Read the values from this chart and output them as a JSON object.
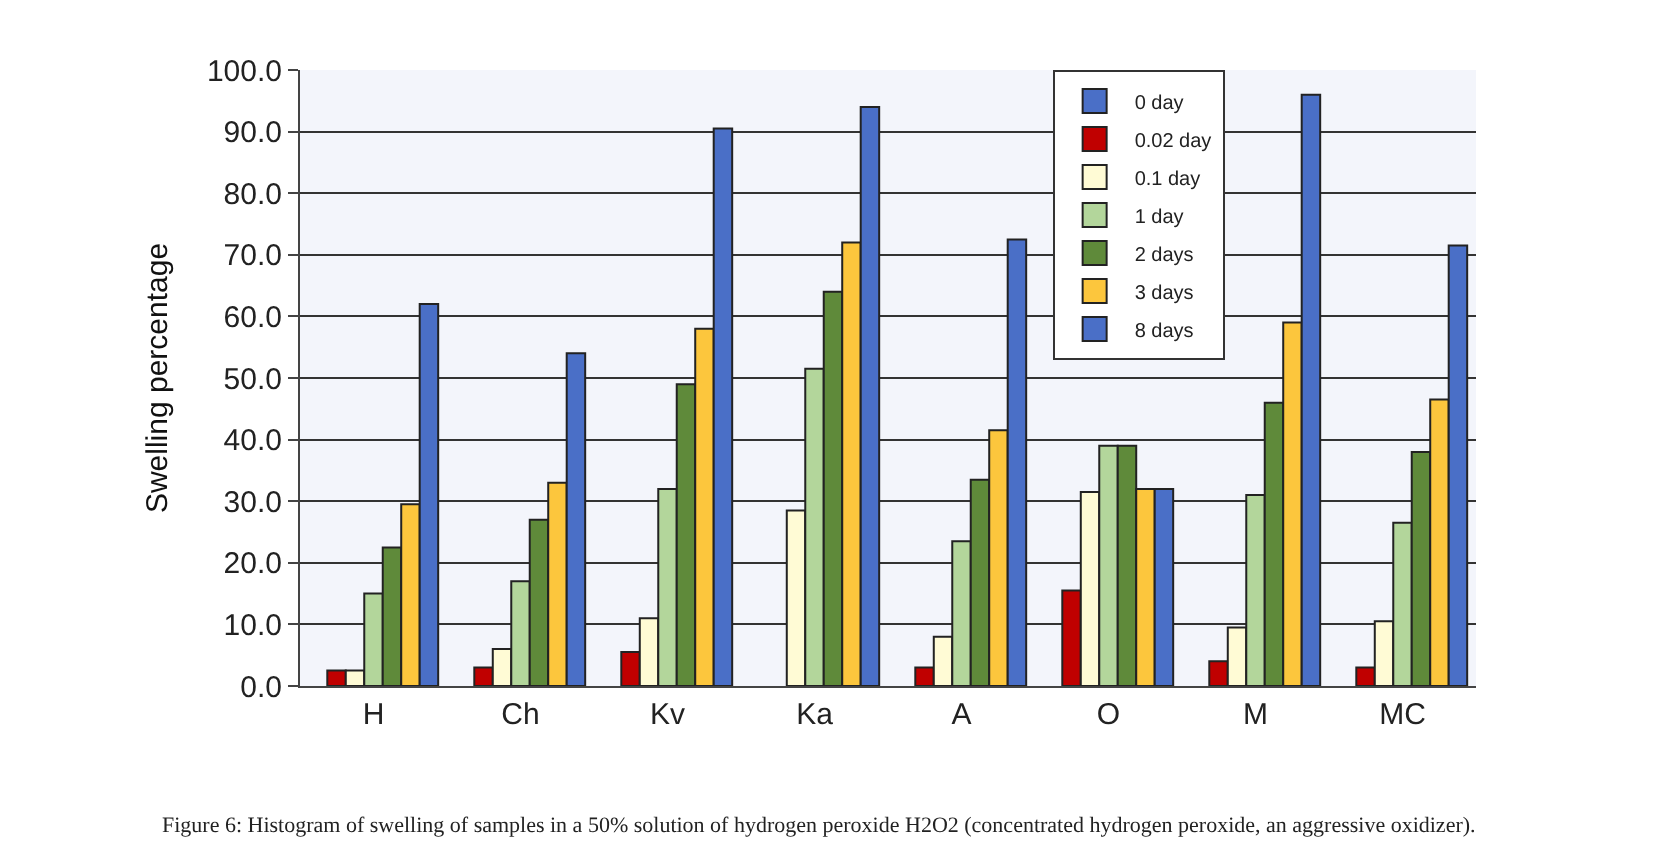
{
  "chart_data": {
    "type": "bar",
    "ylabel": "Swelling percentage",
    "categories": [
      "H",
      "Ch",
      "Kv",
      "Ka",
      "A",
      "O",
      "M",
      "MC"
    ],
    "series": [
      {
        "name": "0 day",
        "color": "#4a6fc7",
        "values": [
          null,
          null,
          null,
          null,
          null,
          null,
          null,
          null
        ]
      },
      {
        "name": "0.02 day",
        "color": "#c00000",
        "values": [
          2.5,
          3,
          5.5,
          null,
          3,
          15.5,
          4,
          3
        ]
      },
      {
        "name": "0.1 day",
        "color": "#fffbd5",
        "values": [
          2.5,
          6,
          11,
          28.5,
          8,
          31.5,
          9.5,
          10.5
        ]
      },
      {
        "name": "1 day",
        "color": "#b3d69b",
        "values": [
          15,
          17,
          32,
          51.5,
          23.5,
          39,
          31,
          26.5
        ]
      },
      {
        "name": "2 days",
        "color": "#5f8a3a",
        "values": [
          22.5,
          27,
          49,
          64,
          33.5,
          39,
          46,
          38
        ]
      },
      {
        "name": "3 days",
        "color": "#fcc63d",
        "values": [
          29.5,
          33,
          58,
          72,
          41.5,
          32,
          59,
          46.5
        ]
      },
      {
        "name": "8 days",
        "color": "#4a6fc7",
        "values": [
          62,
          54,
          90.5,
          94,
          72.5,
          32,
          96,
          71.5
        ]
      }
    ],
    "ylim": [
      0,
      100
    ],
    "yticks": [
      {
        "value": 0,
        "label": "0.0"
      },
      {
        "value": 10,
        "label": "10.0"
      },
      {
        "value": 20,
        "label": "20.0"
      },
      {
        "value": 30,
        "label": "30.0"
      },
      {
        "value": 40,
        "label": "40.0"
      },
      {
        "value": 50,
        "label": "50.0"
      },
      {
        "value": 60,
        "label": "60.0"
      },
      {
        "value": 70,
        "label": "70.0"
      },
      {
        "value": 80,
        "label": "80.0"
      },
      {
        "value": 90,
        "label": "90.0"
      },
      {
        "value": 100,
        "label": "100.0"
      }
    ],
    "grid": "y",
    "legend": "top right",
    "annotations": [
      "Figure 6: Histogram of swelling of samples in a 50% solution of hydrogen peroxide H2O2 (concentrated hydrogen peroxide, an aggressive oxidizer)."
    ]
  }
}
